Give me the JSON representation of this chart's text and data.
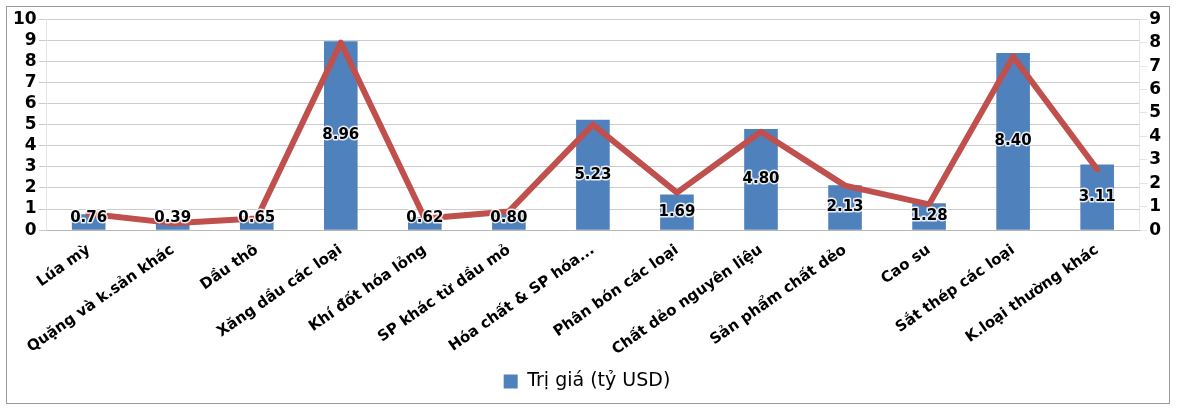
{
  "chart_data": {
    "type": "bar",
    "categories": [
      "Lúa mỳ",
      "Quặng và k.sản khác",
      "Dầu thô",
      "Xăng dầu các loại",
      "Khí đốt hóa lỏng",
      "SP khác từ dầu mỏ",
      "Hóa chất & SP hóa...",
      "Phân bón các loại",
      "Chất dẻo nguyên liệu",
      "Sản phẩm chất dẻo",
      "Cao su",
      "Sắt thép các loại",
      "K.loại thường khác"
    ],
    "series": [
      {
        "name": "Trị giá (tỷ USD)",
        "color": "#4f81bd",
        "values": [
          0.76,
          0.39,
          0.65,
          8.96,
          0.62,
          0.8,
          5.23,
          1.69,
          4.8,
          2.13,
          1.28,
          8.4,
          3.11
        ],
        "value_labels": [
          "0.76",
          "0.39",
          "0.65",
          "8.96",
          "0.62",
          "0.80",
          "5.23",
          "1.69",
          "4.80",
          "2.13",
          "1.28",
          "8.40",
          "3.11"
        ]
      },
      {
        "type": "line",
        "axis": "y2",
        "color": "#c0504d",
        "values": [
          0.7,
          0.3,
          0.5,
          8.0,
          0.5,
          0.8,
          4.5,
          1.6,
          4.2,
          1.9,
          1.1,
          7.4,
          2.6
        ]
      }
    ],
    "ylim": [
      0,
      10
    ],
    "yticks": [
      0,
      1,
      2,
      3,
      4,
      5,
      6,
      7,
      8,
      9,
      10
    ],
    "y2lim": [
      0,
      9
    ],
    "y2ticks": [
      0,
      1,
      2,
      3,
      4,
      5,
      6,
      7,
      8,
      9
    ],
    "grid": "y",
    "legend": "bottom",
    "marker": "none"
  }
}
